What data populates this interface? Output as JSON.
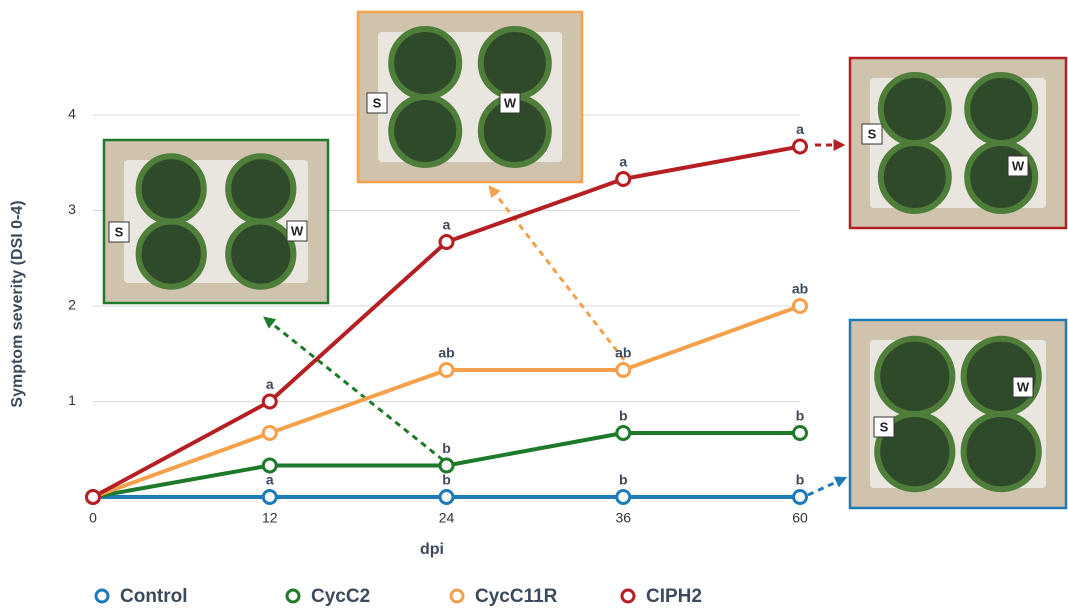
{
  "chart_data": {
    "type": "line",
    "categories": [
      "0",
      "12",
      "24",
      "36",
      "60"
    ],
    "x_label": "dpi",
    "y_label": "Symptom severity (DSI 0-4)",
    "ylim": [
      0,
      4.3
    ],
    "yticks": [
      1,
      2,
      3,
      4
    ],
    "grid": true,
    "series": [
      {
        "name": "Control",
        "color": "#1f7bb8",
        "values": [
          0,
          0,
          0,
          0,
          0
        ],
        "letters": [
          null,
          "a",
          "b",
          "b",
          "b"
        ]
      },
      {
        "name": "CycC2",
        "color": "#1e7a2a",
        "values": [
          0,
          0.33,
          0.33,
          0.67,
          0.67
        ],
        "letters": [
          null,
          null,
          "b",
          "b",
          "b"
        ]
      },
      {
        "name": "CycC11R",
        "color": "#f5a04a",
        "values": [
          0,
          0.67,
          1.33,
          1.33,
          2
        ],
        "letters": [
          null,
          null,
          "ab",
          "ab",
          "ab"
        ]
      },
      {
        "name": "CIPH2",
        "color": "#b51f24",
        "values": [
          0,
          1,
          2.67,
          3.33,
          3.67
        ],
        "letters": [
          null,
          "a",
          "a",
          "a",
          "a"
        ]
      }
    ]
  },
  "insets": [
    {
      "labels": [
        "S",
        "W"
      ]
    },
    {
      "labels": [
        "S",
        "W"
      ]
    },
    {
      "labels": [
        "S",
        "W"
      ]
    },
    {
      "labels": [
        "S",
        "W"
      ]
    }
  ]
}
